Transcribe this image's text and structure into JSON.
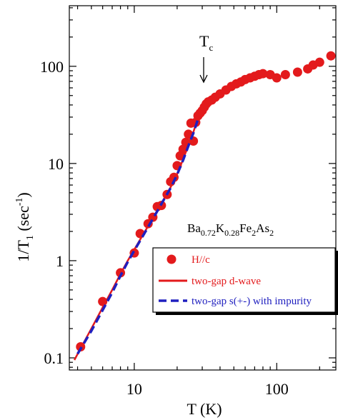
{
  "chart_data": {
    "type": "scatter",
    "x_scale": "log",
    "y_scale": "log",
    "xlim": [
      3.5,
      260
    ],
    "ylim": [
      0.075,
      420
    ],
    "x_ticks": [
      {
        "value": 10,
        "label": "10"
      },
      {
        "value": 100,
        "label": "100"
      }
    ],
    "y_ticks": [
      {
        "value": 0.1,
        "label": "0.1"
      },
      {
        "value": 1,
        "label": "1"
      },
      {
        "value": 10,
        "label": "10"
      },
      {
        "value": 100,
        "label": "100"
      }
    ],
    "xlabel": "T (K)",
    "ylabel": {
      "base": "1/T",
      "sub": "1",
      "mid": "  (sec",
      "sup": "-1",
      "end": ")"
    },
    "compound_label": [
      {
        "t": "Ba",
        "sub": false
      },
      {
        "t": "0.72",
        "sub": true
      },
      {
        "t": "K",
        "sub": false
      },
      {
        "t": "0.28",
        "sub": true
      },
      {
        "t": "Fe",
        "sub": false
      },
      {
        "t": "2",
        "sub": true
      },
      {
        "t": "As",
        "sub": false
      },
      {
        "t": "2",
        "sub": true
      }
    ],
    "annotation": {
      "label": "T",
      "sub": "c",
      "x": 29,
      "y": 36
    },
    "legend_position": "lower-right",
    "series": [
      {
        "name": "H//c",
        "kind": "markers",
        "color": "#e31a1c",
        "points": [
          [
            4.2,
            0.13
          ],
          [
            6.0,
            0.38
          ],
          [
            8.0,
            0.75
          ],
          [
            10.0,
            1.2
          ],
          [
            11.0,
            1.9
          ],
          [
            12.5,
            2.4
          ],
          [
            13.5,
            2.8
          ],
          [
            14.5,
            3.6
          ],
          [
            15.5,
            3.7
          ],
          [
            17.0,
            4.8
          ],
          [
            18.0,
            6.5
          ],
          [
            19.0,
            7.2
          ],
          [
            20.0,
            9.5
          ],
          [
            21.0,
            12
          ],
          [
            22.0,
            14
          ],
          [
            23.0,
            16.5
          ],
          [
            24.0,
            20
          ],
          [
            25.0,
            26
          ],
          [
            26.0,
            17
          ],
          [
            27.0,
            26.5
          ],
          [
            28.0,
            31
          ],
          [
            29.0,
            33
          ],
          [
            30.0,
            35
          ],
          [
            31.0,
            38
          ],
          [
            32.0,
            41
          ],
          [
            33.0,
            43
          ],
          [
            35.0,
            45
          ],
          [
            37.0,
            48
          ],
          [
            40.0,
            52
          ],
          [
            44.0,
            57
          ],
          [
            48.0,
            62
          ],
          [
            52.0,
            66
          ],
          [
            56.0,
            69
          ],
          [
            60.0,
            73
          ],
          [
            65.0,
            76
          ],
          [
            70.0,
            79
          ],
          [
            75.0,
            82
          ],
          [
            80.0,
            84
          ],
          [
            90.0,
            82
          ],
          [
            100.0,
            76
          ],
          [
            115.0,
            82
          ],
          [
            140.0,
            87
          ],
          [
            165.0,
            94
          ],
          [
            180.0,
            103
          ],
          [
            200.0,
            110
          ],
          [
            240.0,
            128
          ]
        ]
      },
      {
        "name": "two-gap d-wave",
        "kind": "line",
        "color": "#e31a1c",
        "points": [
          [
            3.8,
            0.095
          ],
          [
            4.2,
            0.125
          ],
          [
            5.0,
            0.2
          ],
          [
            6.0,
            0.33
          ],
          [
            7.0,
            0.5
          ],
          [
            8.0,
            0.73
          ],
          [
            9.0,
            1.0
          ],
          [
            10.0,
            1.3
          ],
          [
            12.0,
            2.05
          ],
          [
            14.0,
            3.0
          ],
          [
            16.0,
            4.2
          ],
          [
            18.0,
            5.7
          ],
          [
            20.0,
            7.8
          ],
          [
            22.0,
            11
          ],
          [
            24.0,
            15.5
          ],
          [
            26.0,
            21
          ],
          [
            27.0,
            25
          ],
          [
            28.0,
            29
          ]
        ]
      },
      {
        "name": "two-gap s(+-) with impurity",
        "kind": "dashed-line",
        "color": "#1f1fbf",
        "points": [
          [
            4.0,
            0.11
          ],
          [
            5.0,
            0.19
          ],
          [
            6.0,
            0.31
          ],
          [
            7.0,
            0.47
          ],
          [
            8.0,
            0.7
          ],
          [
            9.0,
            0.97
          ],
          [
            10.0,
            1.27
          ],
          [
            12.0,
            2.0
          ],
          [
            14.0,
            2.95
          ],
          [
            16.0,
            4.15
          ],
          [
            18.0,
            5.6
          ],
          [
            20.0,
            7.7
          ],
          [
            22.0,
            10.8
          ],
          [
            24.0,
            15.2
          ],
          [
            26.0,
            20.5
          ],
          [
            28.0,
            28.5
          ]
        ]
      }
    ]
  }
}
